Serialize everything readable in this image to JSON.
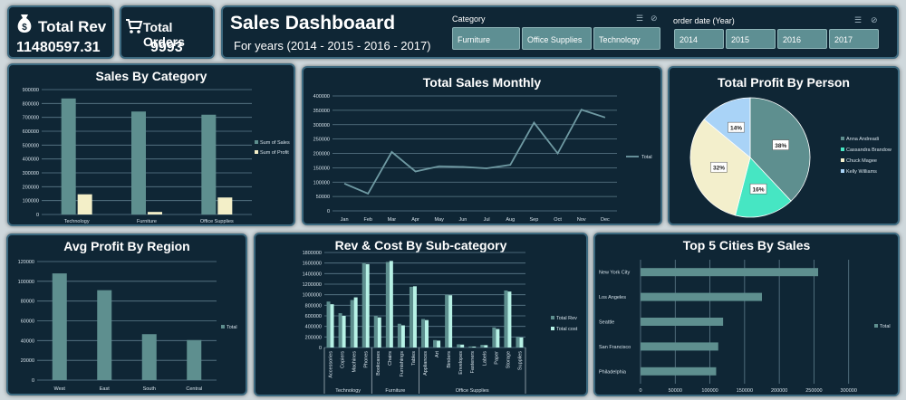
{
  "kpi": {
    "revenue": {
      "label": "Total Rev",
      "value": "11480597.31",
      "icon": "money-bag-icon"
    },
    "orders": {
      "label": "Total Orders",
      "value": "9993",
      "icon": "shopping-cart-icon"
    }
  },
  "header": {
    "title": "Sales Dashboaard",
    "subtitle": "For years (2014 - 2015 - 2016 - 2017)"
  },
  "slicers": {
    "category": {
      "label": "Category",
      "options": [
        "Furniture",
        "Office Supplies",
        "Technology"
      ]
    },
    "year": {
      "label": "order date (Year)",
      "options": [
        "2014",
        "2015",
        "2016",
        "2017"
      ]
    }
  },
  "chart_data": [
    {
      "id": "sales_by_category",
      "type": "bar",
      "title": "Sales By Category",
      "categories": [
        "Technology",
        "Furniture",
        "Office Supplies"
      ],
      "series": [
        {
          "name": "Sum of Sales",
          "values": [
            836154,
            742000,
            719047
          ],
          "color": "#5e8f8f"
        },
        {
          "name": "Sum of Profit",
          "values": [
            145455,
            18451,
            122490
          ],
          "color": "#f3efc8"
        }
      ],
      "ylim": [
        0,
        900000
      ],
      "yticks": [
        "0",
        "100000",
        "200000",
        "300000",
        "400000",
        "500000",
        "600000",
        "700000",
        "800000",
        "900000"
      ],
      "legend": "right"
    },
    {
      "id": "total_sales_monthly",
      "type": "line",
      "title": "Total Sales Monthly",
      "categories": [
        "Jan",
        "Feb",
        "Mar",
        "Apr",
        "May",
        "Jun",
        "Jul",
        "Aug",
        "Sep",
        "Oct",
        "Nov",
        "Dec"
      ],
      "series": [
        {
          "name": "Total",
          "values": [
            95000,
            60000,
            205000,
            137000,
            155000,
            153000,
            148000,
            160000,
            307000,
            200000,
            352000,
            325000
          ],
          "color": "#6f9aa3"
        }
      ],
      "ylim": [
        0,
        400000
      ],
      "yticks": [
        "0",
        "50000",
        "100000",
        "150000",
        "200000",
        "250000",
        "300000",
        "350000",
        "400000"
      ],
      "legend": "right"
    },
    {
      "id": "total_profit_by_person",
      "type": "pie",
      "title": "Total Profit By Person",
      "slices": [
        {
          "name": "Anna Andreadi",
          "value": 38,
          "label": "38%",
          "color": "#5e8f8f"
        },
        {
          "name": "Cassandra Brandow",
          "value": 16,
          "label": "16%",
          "color": "#46e6c3"
        },
        {
          "name": "Chuck Magee",
          "value": 32,
          "label": "32%",
          "color": "#f3efcc"
        },
        {
          "name": "Kelly Williams",
          "value": 14,
          "label": "14%",
          "color": "#a9d3f7"
        }
      ],
      "legend": "right"
    },
    {
      "id": "avg_profit_by_region",
      "type": "bar",
      "title": "Avg Profit By Region",
      "categories": [
        "West",
        "East",
        "South",
        "Central"
      ],
      "series": [
        {
          "name": "Total",
          "values": [
            108000,
            91000,
            46500,
            40500
          ],
          "color": "#5e8f8f"
        }
      ],
      "ylim": [
        0,
        120000
      ],
      "yticks": [
        "0",
        "20000",
        "40000",
        "60000",
        "80000",
        "100000",
        "120000"
      ],
      "legend": "right"
    },
    {
      "id": "rev_cost_by_subcategory",
      "type": "bar",
      "title": "Rev & Cost By Sub-category",
      "categories": [
        "Accessories",
        "Copiers",
        "Machines",
        "Phones",
        "Bookcases",
        "Chairs",
        "Furnishings",
        "Tables",
        "Appliances",
        "Art",
        "Binders",
        "Envelopes",
        "Fasteners",
        "Labels",
        "Paper",
        "Storage",
        "Supplies"
      ],
      "groups": [
        {
          "name": "Technology",
          "count": 4
        },
        {
          "name": "Furniture",
          "count": 4
        },
        {
          "name": "Office Supplies",
          "count": 9
        }
      ],
      "series": [
        {
          "name": "Total Rev",
          "values": [
            870000,
            650000,
            900000,
            1600000,
            600000,
            1620000,
            450000,
            1150000,
            540000,
            140000,
            1000000,
            60000,
            20000,
            50000,
            380000,
            1080000,
            200000
          ],
          "color": "#5e8f8f"
        },
        {
          "name": "Total cost",
          "values": [
            820000,
            600000,
            950000,
            1580000,
            570000,
            1640000,
            420000,
            1160000,
            520000,
            130000,
            990000,
            55000,
            18000,
            45000,
            350000,
            1060000,
            190000
          ],
          "color": "#b7f2e6"
        }
      ],
      "ylim": [
        0,
        1800000
      ],
      "yticks": [
        "0",
        "200000",
        "400000",
        "600000",
        "800000",
        "1000000",
        "1200000",
        "1400000",
        "1600000",
        "1800000"
      ],
      "legend": "right"
    },
    {
      "id": "top5_cities",
      "type": "bar",
      "orientation": "horizontal",
      "title": "Top 5 Cities By Sales",
      "categories": [
        "New York City",
        "Los Angeles",
        "Seattle",
        "San Francisco",
        "Philadelphia"
      ],
      "series": [
        {
          "name": "Total",
          "values": [
            256000,
            175000,
            119000,
            112000,
            109000
          ],
          "color": "#5e8f8f"
        }
      ],
      "xlim": [
        0,
        350000
      ],
      "xticks": [
        "0",
        "50000",
        "100000",
        "150000",
        "200000",
        "250000",
        "300000"
      ],
      "legend": "right"
    }
  ]
}
